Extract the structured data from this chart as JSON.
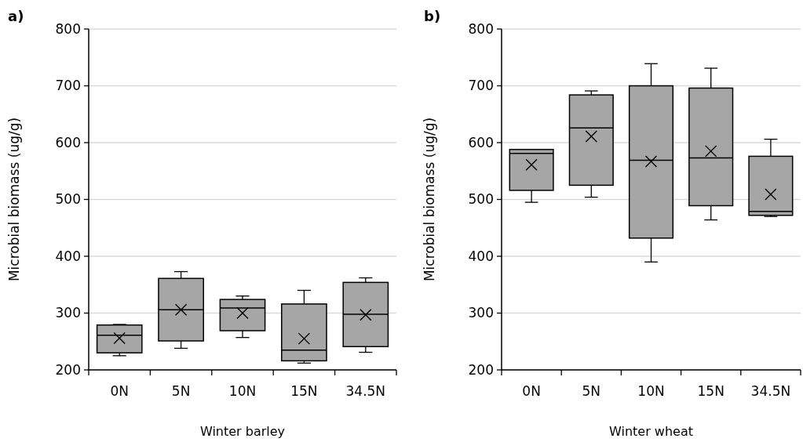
{
  "chart_data": [
    {
      "type": "box",
      "title": "a)",
      "xlabel": "Winter barley",
      "ylabel": "Microbial biomass (ug/g)",
      "categories": [
        "0N",
        "5N",
        "10N",
        "15N",
        "34.5N"
      ],
      "color": "#a6a6a6",
      "ylim": [
        200,
        800
      ],
      "yticks": [
        200,
        300,
        400,
        500,
        600,
        700,
        800
      ],
      "grid": "y",
      "boxes": [
        {
          "low": 225,
          "q1": 230,
          "median": 261,
          "q3": 279,
          "high": 280,
          "mean": 256
        },
        {
          "low": 238,
          "q1": 251,
          "median": 306,
          "q3": 361,
          "high": 373,
          "mean": 306
        },
        {
          "low": 257,
          "q1": 269,
          "median": 309,
          "q3": 324,
          "high": 330,
          "mean": 300
        },
        {
          "low": 212,
          "q1": 216,
          "median": 235,
          "q3": 316,
          "high": 340,
          "mean": 255
        },
        {
          "low": 231,
          "q1": 241,
          "median": 298,
          "q3": 354,
          "high": 362,
          "mean": 297
        }
      ]
    },
    {
      "type": "box",
      "title": "b)",
      "xlabel": "Winter wheat",
      "ylabel": "Microbial biomass (ug/g)",
      "categories": [
        "0N",
        "5N",
        "10N",
        "15N",
        "34.5N"
      ],
      "color": "#a6a6a6",
      "ylim": [
        200,
        800
      ],
      "yticks": [
        200,
        300,
        400,
        500,
        600,
        700,
        800
      ],
      "grid": "y",
      "boxes": [
        {
          "low": 495,
          "q1": 516,
          "median": 581,
          "q3": 588,
          "high": 588,
          "mean": 561
        },
        {
          "low": 504,
          "q1": 525,
          "median": 626,
          "q3": 684,
          "high": 691,
          "mean": 611
        },
        {
          "low": 390,
          "q1": 432,
          "median": 569,
          "q3": 700,
          "high": 739,
          "mean": 567
        },
        {
          "low": 464,
          "q1": 489,
          "median": 573,
          "q3": 696,
          "high": 731,
          "mean": 585
        },
        {
          "low": 470,
          "q1": 472,
          "median": 479,
          "q3": 576,
          "high": 606,
          "mean": 509
        }
      ]
    }
  ]
}
